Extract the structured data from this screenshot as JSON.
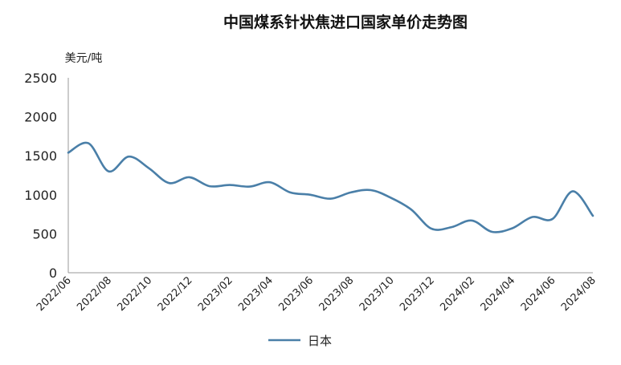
{
  "chart_data": {
    "type": "line",
    "title": "中国煤系针状焦进口国家单价走势图",
    "ylabel": "美元/吨",
    "xlabel": "",
    "ylim": [
      0,
      2500
    ],
    "yticks": [
      0,
      500,
      1000,
      1500,
      2000,
      2500
    ],
    "x_tick_labels": [
      "2022/06",
      "2022/08",
      "2022/10",
      "2022/12",
      "2023/02",
      "2023/04",
      "2023/06",
      "2023/08",
      "2023/10",
      "2023/12",
      "2024/02",
      "2024/04",
      "2024/06",
      "2024/08"
    ],
    "x": [
      "2022/06",
      "2022/07",
      "2022/08",
      "2022/09",
      "2022/10",
      "2022/11",
      "2022/12",
      "2023/01",
      "2023/02",
      "2023/03",
      "2023/04",
      "2023/05",
      "2023/06",
      "2023/07",
      "2023/08",
      "2023/09",
      "2023/10",
      "2023/11",
      "2023/12",
      "2024/01",
      "2024/02",
      "2024/03",
      "2024/04",
      "2024/05",
      "2024/06",
      "2024/07",
      "2024/08"
    ],
    "series": [
      {
        "name": "日本",
        "color": "#4a7fa8",
        "values": [
          1540,
          1660,
          1300,
          1490,
          1340,
          1150,
          1225,
          1110,
          1125,
          1105,
          1160,
          1030,
          1000,
          950,
          1030,
          1060,
          960,
          810,
          565,
          585,
          670,
          525,
          570,
          715,
          690,
          1045,
          730
        ]
      }
    ],
    "grid": false,
    "legend_position": "bottom"
  }
}
